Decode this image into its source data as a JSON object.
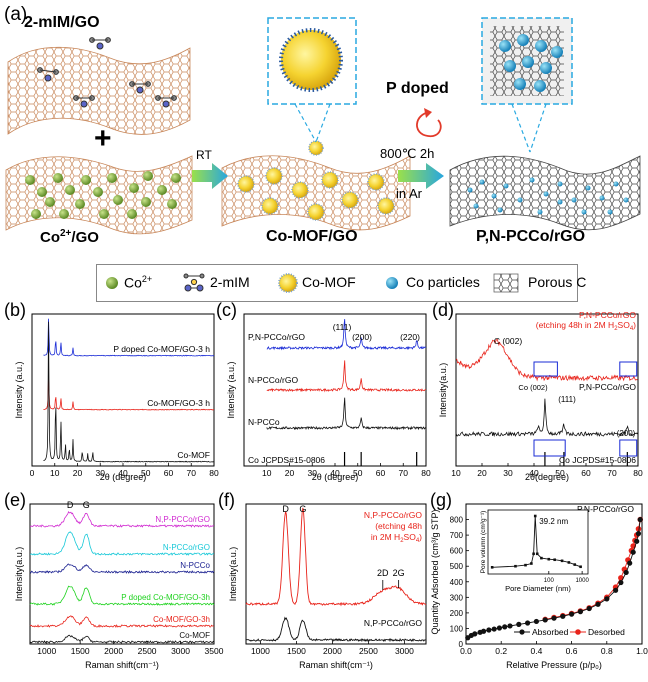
{
  "panel_a": {
    "label": "(a)",
    "title_top": "2-mIM/GO",
    "plus": "+",
    "co_label": "Co",
    "co_sup": "2+",
    "co_label_tail": "/GO",
    "rt": "RT",
    "mof_label": "Co-MOF/GO",
    "p_doped": "P doped",
    "cond1": "800℃ 2h",
    "cond2": "in Ar",
    "product": "P,N-PCCo/rGO"
  },
  "legend": {
    "co_ion": "Co",
    "co_ion_sup": "2+",
    "mim": "2-mIM",
    "mof": "Co-MOF",
    "particles": "Co particles",
    "porous": "Porous C"
  },
  "colors": {
    "black": "#111111",
    "red": "#e8231a",
    "blue": "#1a2bd6",
    "magenta": "#d12ad1",
    "cyan": "#17c8d8",
    "green": "#1fd21f",
    "navy": "#1a2090",
    "go_sheet": "#c8875a",
    "rgo_sheet": "#333333",
    "co_sphere": "#7aa832",
    "co_particle": "#2aa8d8",
    "dash_frame": "#29a9e1"
  },
  "chart_data": [
    {
      "panel": "(b)",
      "type": "line",
      "xlabel": "2θ (degree)",
      "ylabel": "Intensity (a.u.)",
      "xlim": [
        0,
        80
      ],
      "xticks": [
        "0",
        "10",
        "20",
        "30",
        "40",
        "50",
        "60",
        "70",
        "80"
      ],
      "series": [
        {
          "name": "P doped Co-MOF/GO-3 h",
          "color": "#1a2bd6",
          "peaks_2theta": [
            7.3,
            10.4,
            12.7,
            18.0
          ]
        },
        {
          "name": "Co-MOF/GO-3 h",
          "color": "#e8231a",
          "peaks_2theta": [
            7.3,
            10.4,
            12.7,
            18.0
          ]
        },
        {
          "name": "Co-MOF",
          "color": "#111111",
          "peaks_2theta": [
            7.3,
            10.4,
            12.7,
            14.7,
            16.4,
            18.0,
            22.1,
            24.5,
            26.7
          ]
        }
      ]
    },
    {
      "panel": "(c)",
      "type": "line",
      "xlabel": "2θ (degree)",
      "ylabel": "Intensity (a.u.)",
      "xlim": [
        0,
        80
      ],
      "xticks": [
        "10",
        "20",
        "30",
        "40",
        "50",
        "60",
        "70",
        "80"
      ],
      "annotations": [
        "(111)",
        "(200)",
        "(220)"
      ],
      "series": [
        {
          "name": "P,N-PCCo/rGO",
          "color": "#1a2bd6",
          "peaks_2theta": [
            44.2,
            51.5,
            75.9
          ]
        },
        {
          "name": "N-PCCo/rGO",
          "color": "#e8231a",
          "peaks_2theta": [
            44.2,
            51.5
          ]
        },
        {
          "name": "N-PCCo",
          "color": "#111111",
          "peaks_2theta": [
            44.2,
            51.5
          ]
        }
      ],
      "reference": {
        "name": "Co JCPDS#15-0806",
        "sticks_2theta": [
          44.2,
          51.5,
          75.9
        ]
      }
    },
    {
      "panel": "(d)",
      "type": "line",
      "xlabel": "2θ(degree)",
      "ylabel": "Intensity(a.u.)",
      "xlim": [
        10,
        80
      ],
      "xticks": [
        "10",
        "20",
        "30",
        "40",
        "50",
        "60",
        "70",
        "80"
      ],
      "annotations": [
        "C (002)",
        "Co (002)",
        "(111)",
        "(200)"
      ],
      "series": [
        {
          "name": "P,N-PCCo/rGO (etching 48h in 2M H2SO4)",
          "label_lines": [
            "P,N-PCCo/rGO",
            "(etching 48h in 2M H",
            "2",
            "SO",
            "4",
            ")"
          ],
          "color": "#e8231a",
          "peaks_2theta": [
            25.5
          ]
        },
        {
          "name": "P,N-PCCo/rGO",
          "color": "#111111",
          "peaks_2theta": [
            41.6,
            44.2,
            51.5,
            75.9
          ]
        }
      ],
      "reference": {
        "name": "Co JCPDS#15-0806",
        "sticks_2theta": [
          44.2,
          51.5,
          75.9
        ]
      }
    },
    {
      "panel": "(e)",
      "type": "line",
      "xlabel": "Raman shift(cm⁻¹)",
      "ylabel": "Intensity(a.u.)",
      "xlim": [
        750,
        3500
      ],
      "xticks": [
        "1000",
        "1500",
        "2000",
        "2500",
        "3000",
        "3500"
      ],
      "annotations": [
        "D",
        "G"
      ],
      "series": [
        {
          "name": "N,P-PCCo/rGO",
          "color": "#d12ad1",
          "bands_cm": [
            1350,
            1590
          ]
        },
        {
          "name": "N-PCCo/rGO",
          "color": "#17c8d8",
          "bands_cm": [
            1350,
            1590
          ]
        },
        {
          "name": "N-PCCo",
          "color": "#1a2090",
          "bands_cm": [
            1350,
            1590
          ]
        },
        {
          "name": "P doped Co-MOF/GO-3h",
          "color": "#1fd21f",
          "bands_cm": [
            1350,
            1590
          ]
        },
        {
          "name": "Co-MOF/GO-3h",
          "color": "#e8231a",
          "bands_cm": [
            1350,
            1590
          ]
        },
        {
          "name": "Co-MOF",
          "color": "#111111",
          "bands_cm": [
            1350,
            1590
          ]
        }
      ]
    },
    {
      "panel": "(f)",
      "type": "line",
      "xlabel": "Raman shift(cm⁻¹)",
      "ylabel": "Intensity(a.u.)",
      "xlim": [
        800,
        3300
      ],
      "xticks": [
        "1000",
        "1500",
        "2000",
        "2500",
        "3000"
      ],
      "annotations": [
        "D",
        "G",
        "2D",
        "2G"
      ],
      "series": [
        {
          "name": "N,P-PCCo/rGO (etching 48h in 2M H2SO4)",
          "label_lines": [
            "N,P-PCCo/rGO",
            "(etching 48h",
            "in 2M H",
            "2",
            "SO",
            "4",
            ")"
          ],
          "color": "#e8231a",
          "bands_cm": [
            1350,
            1590,
            2700,
            2920
          ]
        },
        {
          "name": "N,P-PCCo/rGO",
          "color": "#111111",
          "bands_cm": [
            1350,
            1590
          ]
        }
      ]
    },
    {
      "panel": "(g)",
      "type": "line",
      "title": "P,N-PCCo/rGO",
      "xlabel": "Relative Pressure (p/p₀)",
      "ylabel": "Quantity Adsorbed (cm³/g STP)",
      "xlim": [
        0.0,
        1.0
      ],
      "ylim": [
        0,
        900
      ],
      "xticks": [
        "0.0",
        "0.2",
        "0.4",
        "0.6",
        "0.8",
        "1.0"
      ],
      "yticks": [
        "0",
        "100",
        "200",
        "300",
        "400",
        "500",
        "600",
        "700",
        "800"
      ],
      "series": [
        {
          "name": "Absorbed",
          "color": "#111111",
          "x": [
            0.01,
            0.03,
            0.05,
            0.08,
            0.1,
            0.13,
            0.16,
            0.19,
            0.22,
            0.25,
            0.3,
            0.35,
            0.4,
            0.45,
            0.5,
            0.55,
            0.6,
            0.65,
            0.7,
            0.75,
            0.8,
            0.85,
            0.88,
            0.91,
            0.93,
            0.95,
            0.97,
            0.98,
            0.99
          ],
          "y": [
            40,
            55,
            65,
            75,
            82,
            90,
            96,
            103,
            110,
            116,
            126,
            135,
            145,
            155,
            166,
            178,
            192,
            208,
            228,
            255,
            290,
            345,
            395,
            460,
            520,
            590,
            660,
            710,
            800
          ]
        },
        {
          "name": "Desorbed",
          "color": "#e8231a",
          "x": [
            0.99,
            0.98,
            0.97,
            0.96,
            0.95,
            0.94,
            0.92,
            0.9,
            0.88,
            0.85,
            0.8,
            0.75,
            0.7,
            0.65,
            0.6,
            0.55,
            0.5,
            0.45
          ],
          "y": [
            800,
            740,
            700,
            665,
            630,
            600,
            540,
            480,
            425,
            365,
            300,
            262,
            232,
            212,
            196,
            182,
            170,
            158
          ]
        }
      ],
      "inset": {
        "label": "39.2 nm",
        "xlabel": "Pore Diameter (nm)",
        "ylabel": "Pore volumn (cm³g⁻¹)",
        "xticks": [
          "100",
          "1000"
        ],
        "x_nm": [
          2,
          10,
          20,
          30,
          35,
          39.2,
          45,
          60,
          100,
          150,
          250,
          400,
          600,
          900
        ],
        "y_rel": [
          0.05,
          0.07,
          0.09,
          0.12,
          0.3,
          1.0,
          0.3,
          0.22,
          0.2,
          0.19,
          0.17,
          0.14,
          0.1,
          0.06
        ]
      }
    }
  ]
}
